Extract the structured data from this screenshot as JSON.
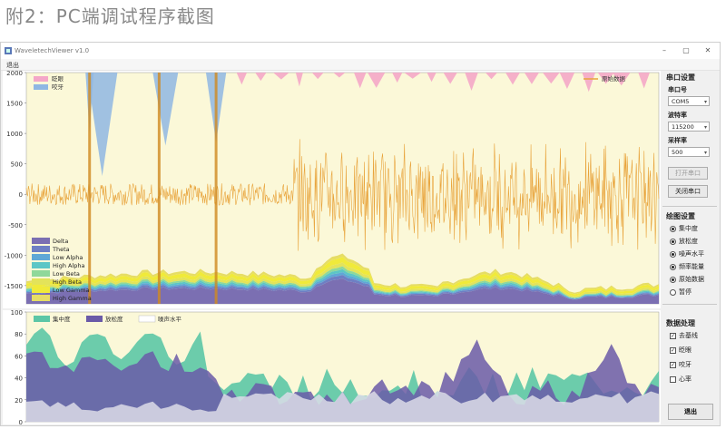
{
  "page_caption": "附2：PC端调试程序截图",
  "window": {
    "title": "WaveletechViewer v1.0",
    "controls": [
      "–",
      "▢",
      "✕"
    ],
    "menu": "退出"
  },
  "top_chart": {
    "y_ticks": [
      "2000",
      "1500",
      "1000",
      "500",
      "0",
      "-500",
      "-1000",
      "-1500"
    ],
    "overlay_legend": [
      {
        "label": "眨眼",
        "color": "#f4a7c8"
      },
      {
        "label": "咬牙",
        "color": "#8fb7e3"
      }
    ],
    "raw_legend": {
      "label": "原始数据",
      "color": "#e8a33a"
    },
    "band_legend": [
      {
        "label": "Delta",
        "color": "#7b6fb2"
      },
      {
        "label": "Theta",
        "color": "#6e7fc4"
      },
      {
        "label": "Low Alpha",
        "color": "#5fa8d6"
      },
      {
        "label": "High Alpha",
        "color": "#5cc6c6"
      },
      {
        "label": "Low Beta",
        "color": "#8fd89a"
      },
      {
        "label": "High Beta",
        "color": "#e3e35a"
      },
      {
        "label": "Low Gamma",
        "color": "#f0ea3a"
      },
      {
        "label": "High Gamma",
        "color": "#e6dd65"
      }
    ],
    "background": "#fbf8d8"
  },
  "bottom_chart": {
    "y_ticks": [
      "100",
      "80",
      "60",
      "40",
      "20",
      "0"
    ],
    "legend": [
      {
        "label": "集中度",
        "color": "#5cc6a6"
      },
      {
        "label": "放松度",
        "color": "#6a5aa8"
      },
      {
        "label": "噪声水平",
        "color": "#ffffff"
      }
    ],
    "background": "#fbf8d8"
  },
  "serial": {
    "title": "串口设置",
    "port_label": "串口号",
    "port_value": "COM5",
    "baud_label": "波特率",
    "baud_value": "115200",
    "rate_label": "采样率",
    "rate_value": "500",
    "open_button": "打开串口",
    "close_button": "关闭串口"
  },
  "plot": {
    "title": "绘图设置",
    "options": [
      {
        "label": "集中度",
        "checked": true
      },
      {
        "label": "放松度",
        "checked": true
      },
      {
        "label": "噪声水平",
        "checked": true
      },
      {
        "label": "频率能量",
        "checked": true
      },
      {
        "label": "原始数据",
        "checked": true
      },
      {
        "label": "暂停",
        "checked": false
      }
    ]
  },
  "processing": {
    "title": "数据处理",
    "options": [
      {
        "label": "去基线",
        "checked": true
      },
      {
        "label": "眨眼",
        "checked": true
      },
      {
        "label": "咬牙",
        "checked": true
      },
      {
        "label": "心率",
        "checked": false
      }
    ]
  },
  "exit_button": "退出"
}
